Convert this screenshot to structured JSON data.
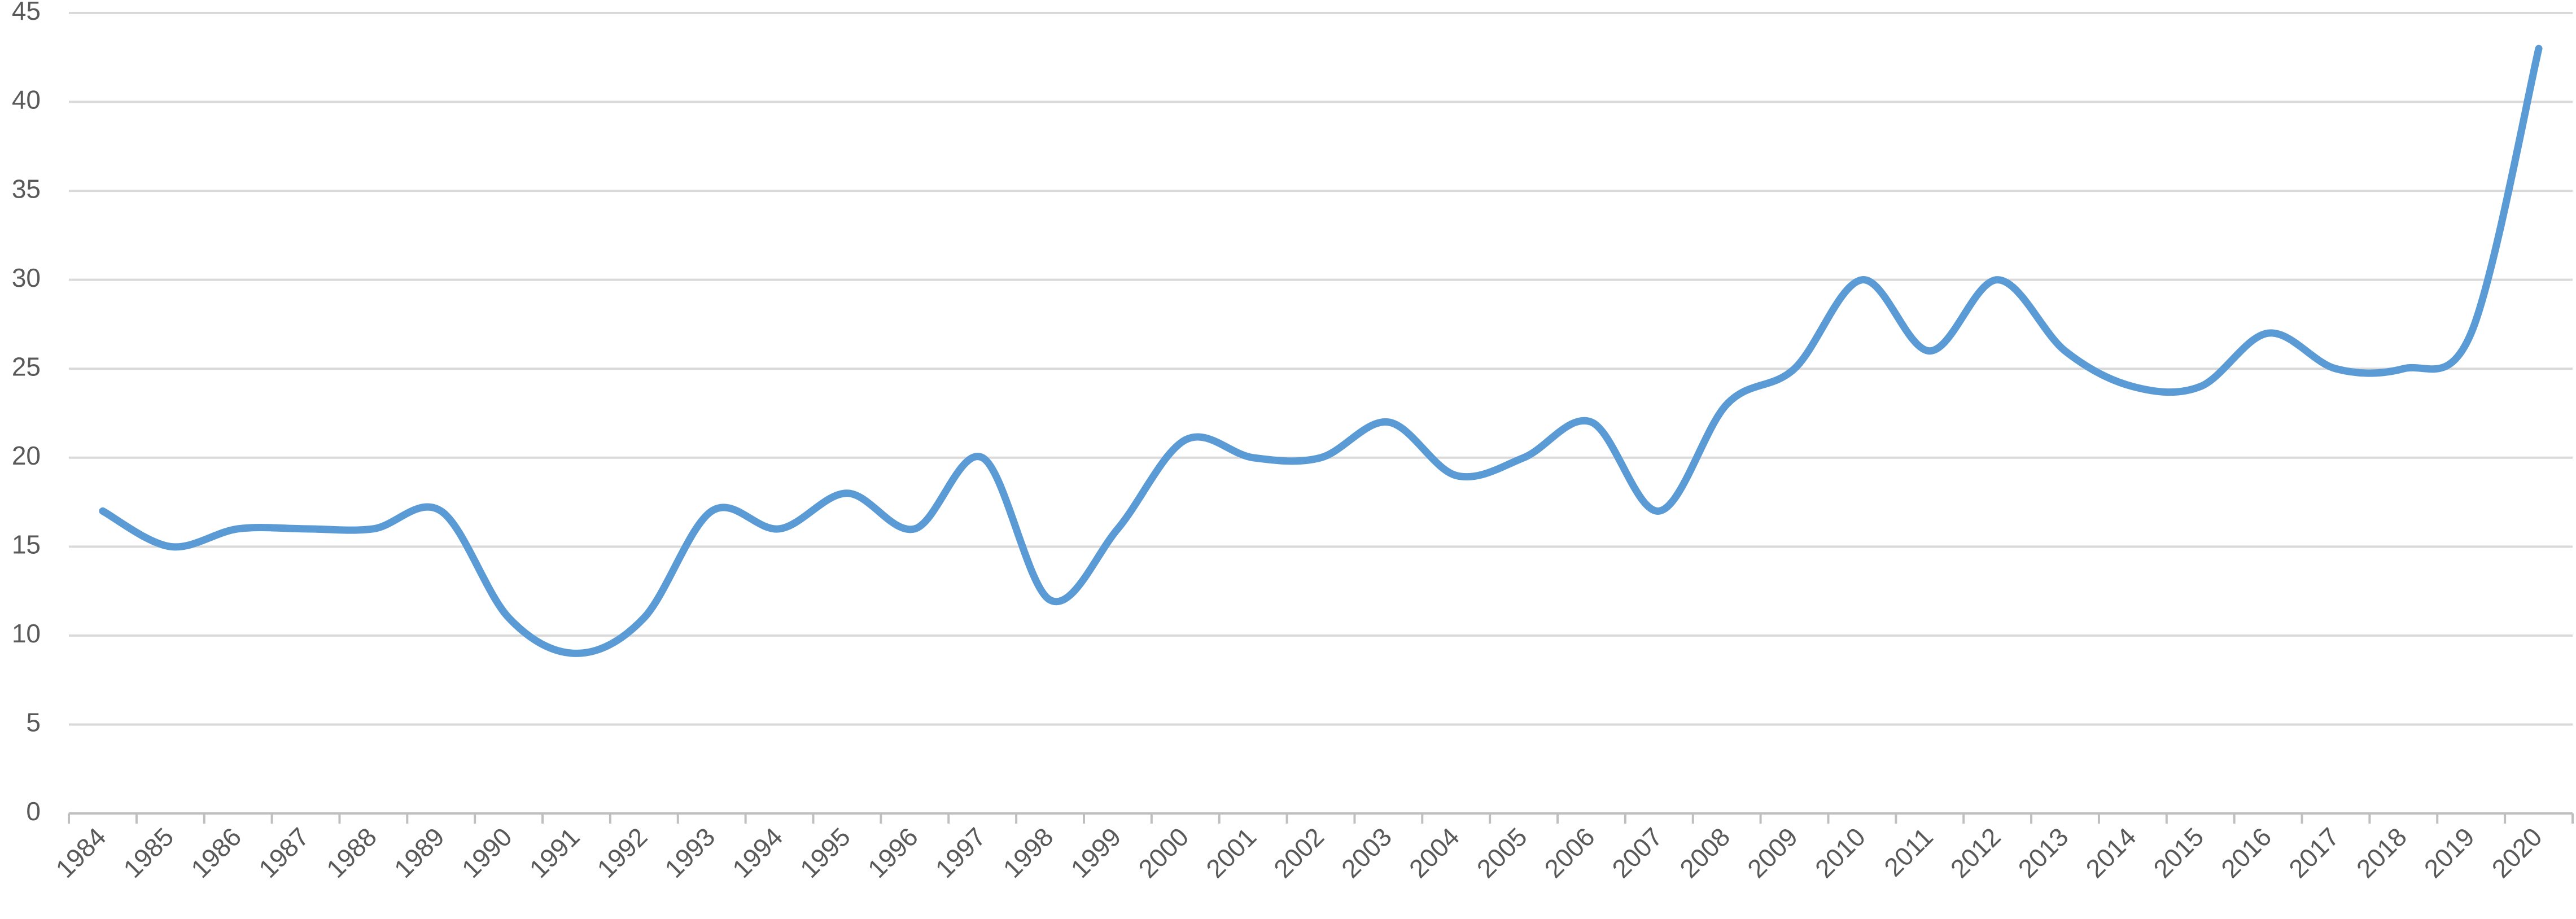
{
  "chart_data": {
    "type": "line",
    "categories": [
      "1984",
      "1985",
      "1986",
      "1987",
      "1988",
      "1989",
      "1990",
      "1991",
      "1992",
      "1993",
      "1994",
      "1995",
      "1996",
      "1997",
      "1998",
      "1999",
      "2000",
      "2001",
      "2002",
      "2003",
      "2004",
      "2005",
      "2006",
      "2007",
      "2008",
      "2009",
      "2010",
      "2011",
      "2012",
      "2013",
      "2014",
      "2015",
      "2016",
      "2017",
      "2018",
      "2019",
      "2020"
    ],
    "values": [
      17,
      15,
      16,
      16,
      16,
      17,
      11,
      9,
      11,
      17,
      16,
      18,
      16,
      20,
      12,
      16,
      21,
      20,
      20,
      22,
      19,
      20,
      22,
      17,
      23,
      25,
      30,
      26,
      30,
      26,
      24,
      24,
      27,
      25,
      25,
      27,
      43
    ],
    "color": "#5b9bd5",
    "ylim": [
      0,
      45
    ],
    "yticks": [
      0,
      5,
      10,
      15,
      20,
      25,
      30,
      35,
      40,
      45
    ],
    "grid": true
  }
}
